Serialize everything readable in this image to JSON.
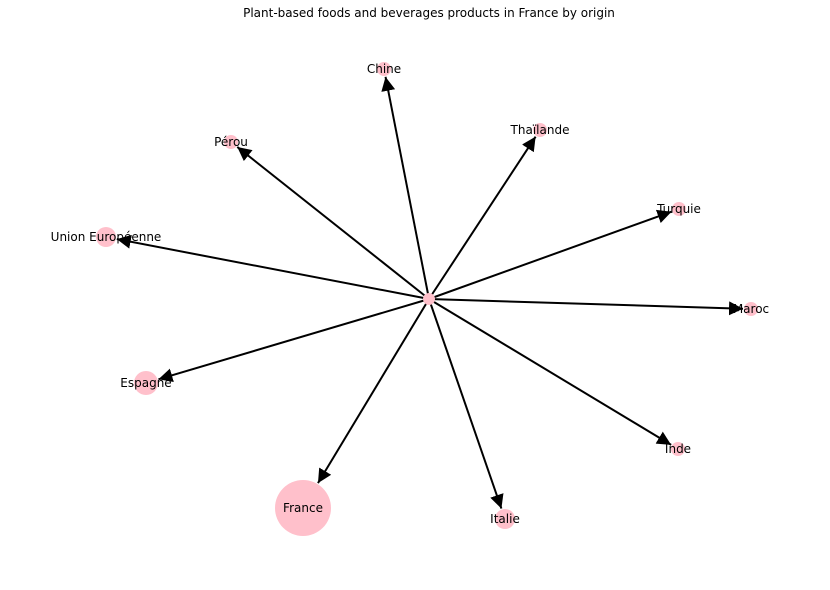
{
  "title": "Plant-based foods and beverages products in France by origin",
  "style": {
    "node_color": "#ffc0cb",
    "edge_color": "#000000",
    "background": "#ffffff"
  },
  "graph": {
    "type": "directed",
    "center": {
      "id": "center",
      "label": ""
    },
    "nodes": [
      {
        "id": "chine",
        "label": "Chine",
        "size_rank": 1
      },
      {
        "id": "thailande",
        "label": "Thaïlande",
        "size_rank": 1
      },
      {
        "id": "perou",
        "label": "Pérou",
        "size_rank": 1
      },
      {
        "id": "turquie",
        "label": "Turquie",
        "size_rank": 1
      },
      {
        "id": "union-europeenne",
        "label": "Union Européenne",
        "size_rank": 2
      },
      {
        "id": "maroc",
        "label": "Maroc",
        "size_rank": 1
      },
      {
        "id": "espagne",
        "label": "Espagne",
        "size_rank": 3
      },
      {
        "id": "inde",
        "label": "Inde",
        "size_rank": 1
      },
      {
        "id": "france",
        "label": "France",
        "size_rank": 10
      },
      {
        "id": "italie",
        "label": "Italie",
        "size_rank": 2
      }
    ],
    "edges": [
      {
        "from": "center",
        "to": "chine"
      },
      {
        "from": "center",
        "to": "thailande"
      },
      {
        "from": "center",
        "to": "perou"
      },
      {
        "from": "center",
        "to": "turquie"
      },
      {
        "from": "center",
        "to": "union-europeenne"
      },
      {
        "from": "center",
        "to": "maroc"
      },
      {
        "from": "center",
        "to": "espagne"
      },
      {
        "from": "center",
        "to": "inde"
      },
      {
        "from": "center",
        "to": "france"
      },
      {
        "from": "center",
        "to": "italie"
      }
    ]
  }
}
